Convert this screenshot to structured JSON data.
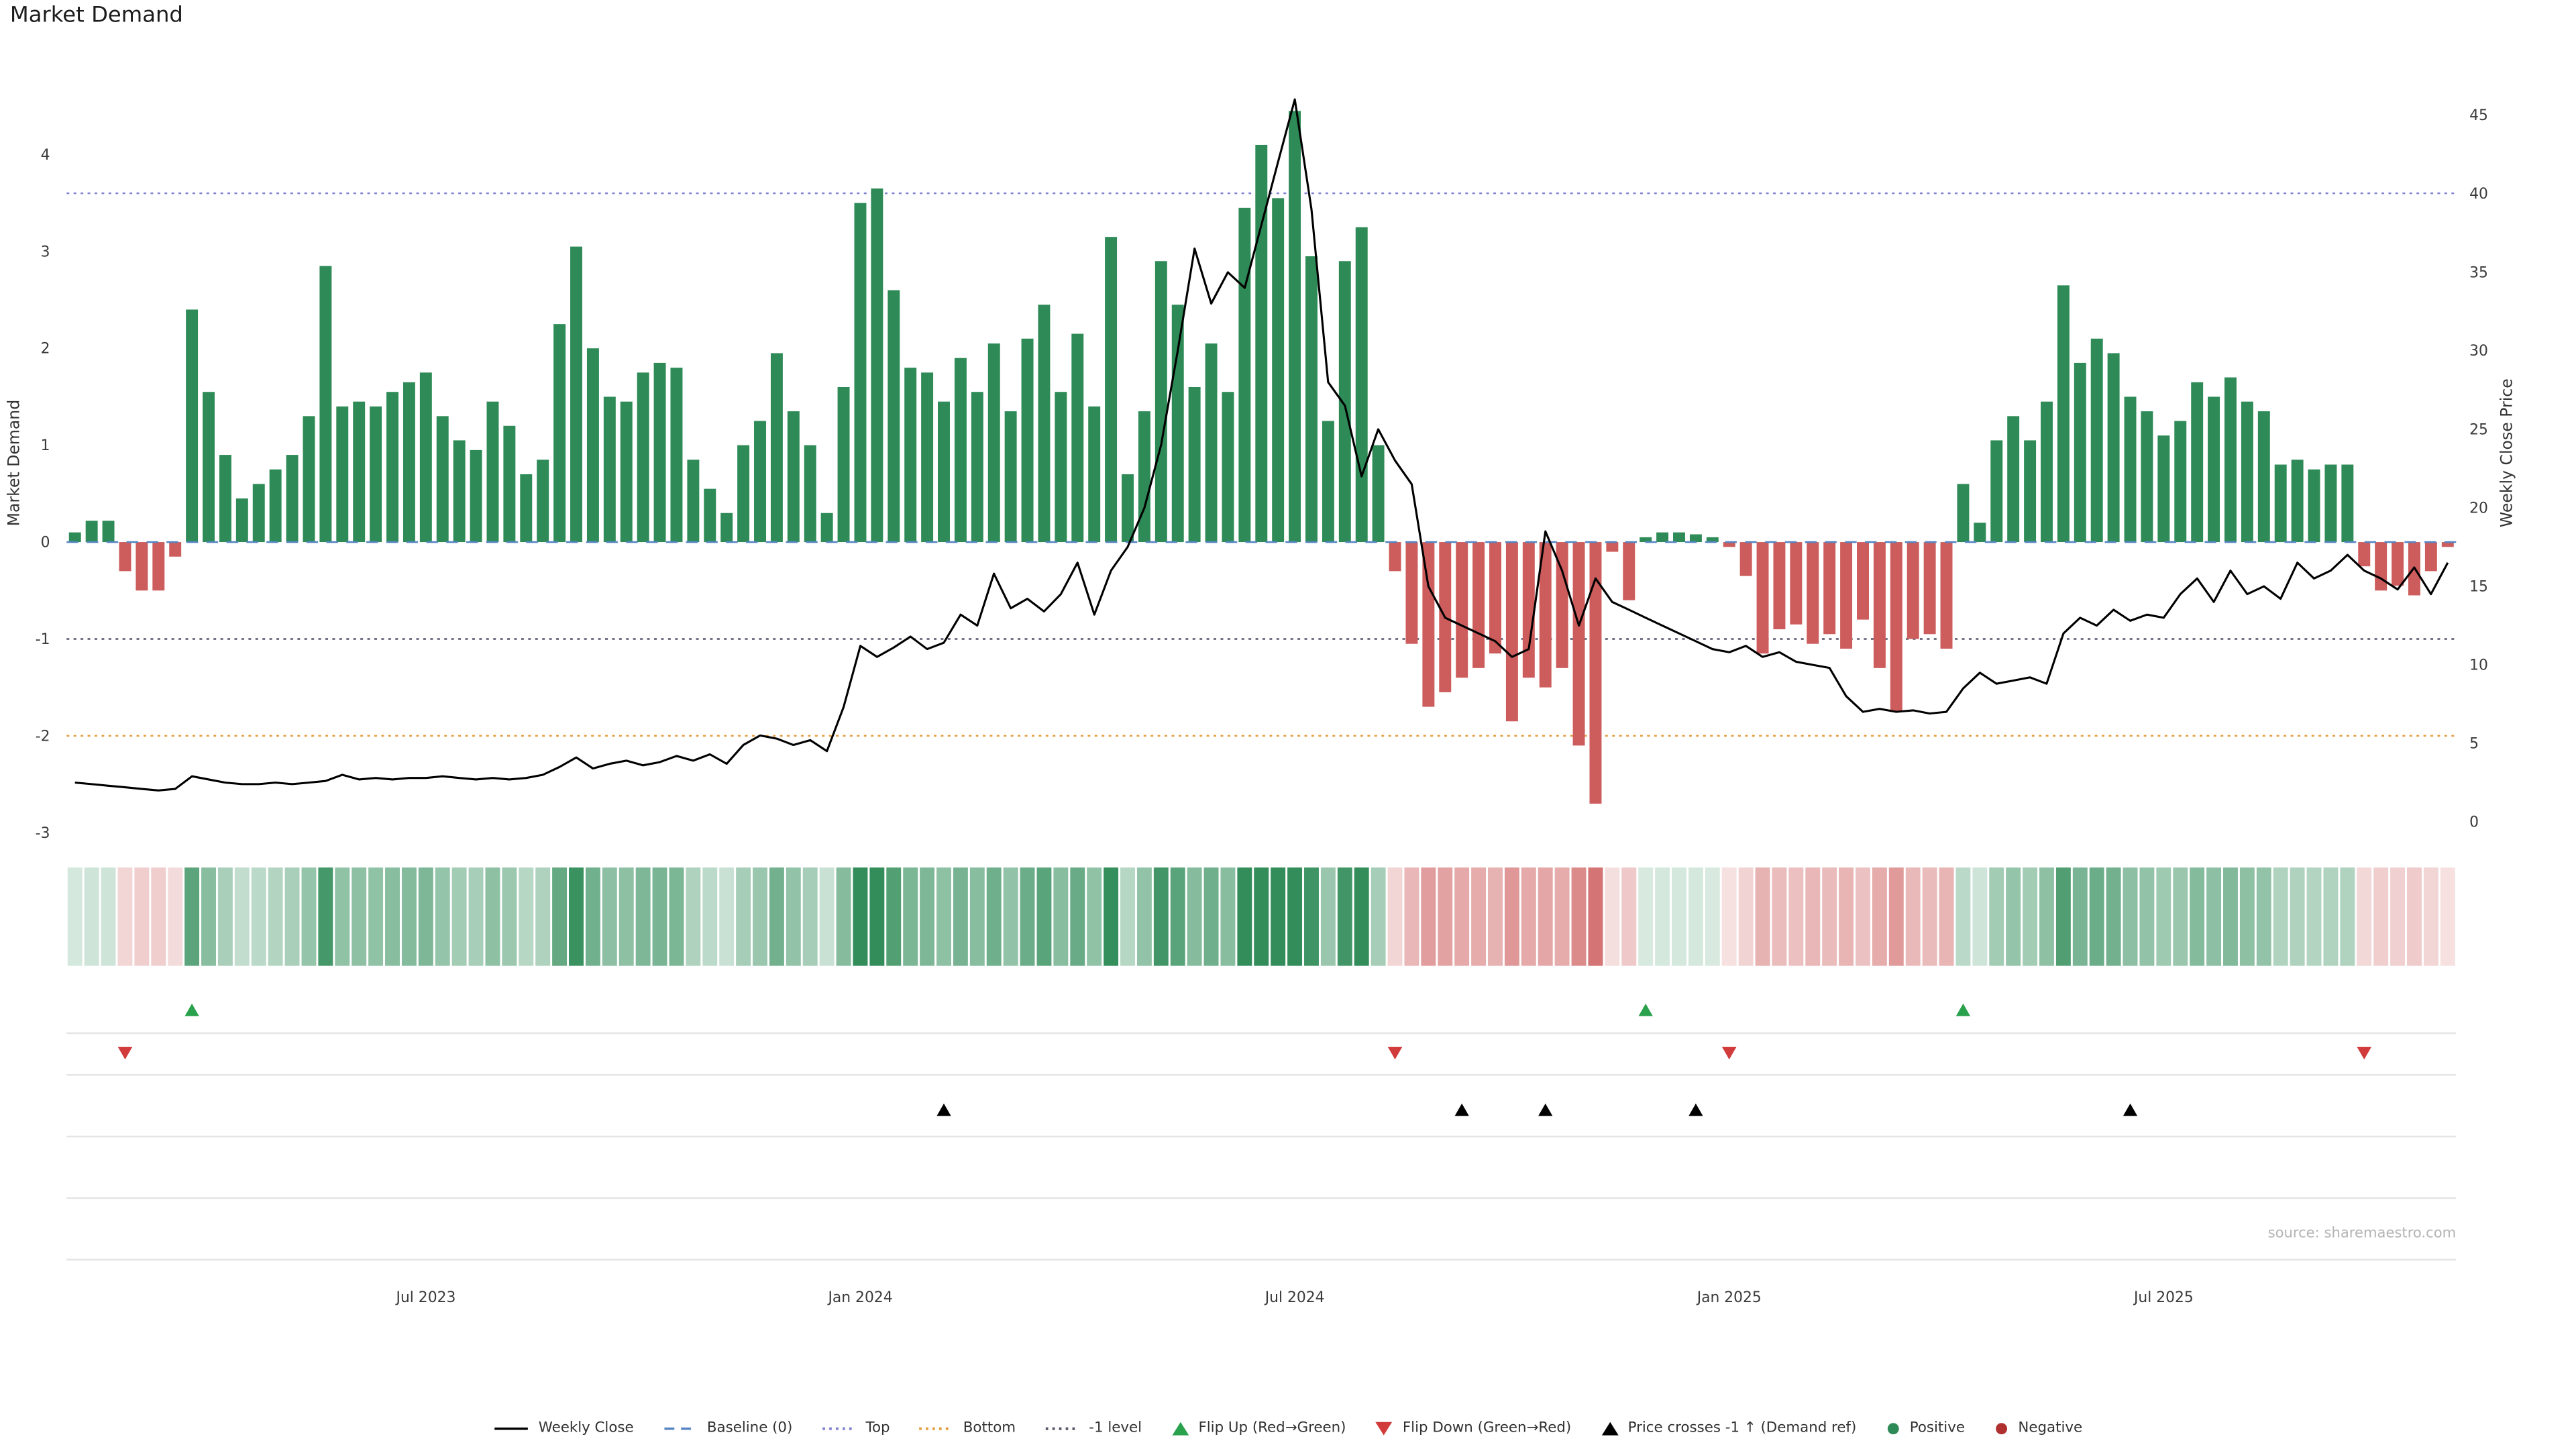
{
  "title": "Market Demand",
  "source": "source: sharemaestro.com",
  "colors": {
    "positive": "#2e8b57",
    "negative": "#cd5c5c",
    "price_line": "#000000",
    "baseline": "#5585c2",
    "top_line": "#8181d2",
    "bottom_line": "#e59b3c",
    "minus1_line": "#55556a",
    "flip_up": "#2aa14c",
    "flip_down": "#d23b3b",
    "price_cross": "#000000",
    "grid": "#e4e4e4",
    "tick_text": "#3a3a3a"
  },
  "chart_data": {
    "type": "combo",
    "subtype": [
      "bar",
      "line",
      "heatmap",
      "markers"
    ],
    "n_points": 143,
    "x_unit": "week_index",
    "x_tick_labels": [
      {
        "index": 21,
        "label": "Jul 2023"
      },
      {
        "index": 47,
        "label": "Jan 2024"
      },
      {
        "index": 73,
        "label": "Jul 2024"
      },
      {
        "index": 99,
        "label": "Jan 2025"
      },
      {
        "index": 125,
        "label": "Jul 2025"
      }
    ],
    "left_axis": {
      "label": "Market Demand",
      "ticks": [
        4,
        3,
        2,
        1,
        0,
        -1,
        -2,
        -3
      ],
      "range": [
        -3.05,
        4.65
      ]
    },
    "right_axis": {
      "label": "Weekly Close Price",
      "ticks": [
        45,
        40,
        35,
        30,
        25,
        20,
        15,
        10,
        5,
        0
      ],
      "range": [
        -1,
        46.5
      ]
    },
    "series": [
      {
        "name": "Market Demand",
        "type": "bar",
        "axis": "left",
        "values": [
          0.1,
          0.22,
          0.22,
          -0.3,
          -0.5,
          -0.5,
          -0.15,
          2.4,
          1.55,
          0.9,
          0.45,
          0.6,
          0.75,
          0.9,
          1.3,
          2.85,
          1.4,
          1.45,
          1.4,
          1.55,
          1.65,
          1.75,
          1.3,
          1.05,
          0.95,
          1.45,
          1.2,
          0.7,
          0.85,
          2.25,
          3.05,
          2.0,
          1.5,
          1.45,
          1.75,
          1.85,
          1.8,
          0.85,
          0.55,
          0.3,
          1.0,
          1.25,
          1.95,
          1.35,
          1.0,
          0.3,
          1.6,
          3.5,
          3.65,
          2.6,
          1.8,
          1.75,
          1.45,
          1.9,
          1.55,
          2.05,
          1.35,
          2.1,
          2.45,
          1.55,
          2.15,
          1.4,
          3.15,
          0.7,
          1.35,
          2.9,
          2.45,
          1.6,
          2.05,
          1.55,
          3.45,
          4.1,
          3.55,
          4.45,
          2.95,
          1.25,
          2.9,
          3.25,
          1.0,
          -0.3,
          -1.05,
          -1.7,
          -1.55,
          -1.4,
          -1.3,
          -1.15,
          -1.85,
          -1.4,
          -1.5,
          -1.3,
          -2.1,
          -2.7,
          -0.1,
          -0.6,
          0.05,
          0.1,
          0.1,
          0.08,
          0.05,
          -0.05,
          -0.35,
          -1.15,
          -0.9,
          -0.85,
          -1.05,
          -0.95,
          -1.1,
          -0.8,
          -1.3,
          -1.75,
          -1.0,
          -0.95,
          -1.1,
          0.6,
          0.2,
          1.05,
          1.3,
          1.05,
          1.45,
          2.65,
          1.85,
          2.1,
          1.95,
          1.5,
          1.35,
          1.1,
          1.25,
          1.65,
          1.5,
          1.7,
          1.45,
          1.35,
          0.8,
          0.85,
          0.75,
          0.8,
          0.8,
          -0.25,
          -0.5,
          -0.45,
          -0.55,
          -0.3,
          -0.05
        ]
      },
      {
        "name": "Weekly Close",
        "type": "line",
        "axis": "right",
        "values": [
          2.5,
          2.4,
          2.3,
          2.2,
          2.1,
          2.0,
          2.1,
          2.9,
          2.7,
          2.5,
          2.4,
          2.4,
          2.5,
          2.4,
          2.5,
          2.6,
          3.0,
          2.7,
          2.8,
          2.7,
          2.8,
          2.8,
          2.9,
          2.8,
          2.7,
          2.8,
          2.7,
          2.8,
          3.0,
          3.5,
          4.1,
          3.4,
          3.7,
          3.9,
          3.6,
          3.8,
          4.2,
          3.9,
          4.3,
          3.7,
          4.9,
          5.5,
          5.3,
          4.9,
          5.2,
          4.5,
          7.3,
          11.2,
          10.5,
          11.1,
          11.8,
          11.0,
          11.4,
          13.2,
          12.5,
          15.8,
          13.6,
          14.2,
          13.4,
          14.5,
          16.5,
          13.2,
          16.0,
          17.5,
          20.0,
          24.0,
          30.0,
          36.5,
          33.0,
          35.0,
          34.0,
          38.0,
          42.0,
          46.0,
          39.0,
          28.0,
          26.5,
          22.0,
          25.0,
          23.0,
          21.5,
          15.0,
          13.0,
          12.5,
          12.0,
          11.5,
          10.5,
          11.0,
          18.5,
          16.0,
          12.5,
          15.5,
          14.0,
          13.5,
          13.0,
          12.5,
          12.0,
          11.5,
          11.0,
          10.8,
          11.2,
          10.5,
          10.8,
          10.2,
          10.0,
          9.8,
          8.0,
          7.0,
          7.2,
          7.0,
          7.1,
          6.9,
          7.0,
          8.5,
          9.5,
          8.8,
          9.0,
          9.2,
          8.8,
          12.0,
          13.0,
          12.5,
          13.5,
          12.8,
          13.2,
          13.0,
          14.5,
          15.5,
          14.0,
          16.0,
          14.5,
          15.0,
          14.2,
          16.5,
          15.5,
          16.0,
          17.0,
          16.0,
          15.5,
          14.8,
          16.2,
          14.5,
          16.5
        ]
      }
    ],
    "ref_lines": [
      {
        "name": "Baseline (0)",
        "value": 0.0,
        "style": "dashed",
        "color_key": "baseline"
      },
      {
        "name": "Top",
        "value": 3.6,
        "style": "dotted",
        "color_key": "top_line"
      },
      {
        "name": "Bottom",
        "value": -2.0,
        "style": "dotted",
        "color_key": "bottom_line"
      },
      {
        "name": "-1 level",
        "value": -1.0,
        "style": "dotted",
        "color_key": "minus1_line"
      }
    ],
    "markers": {
      "flip_up_weeks": [
        7,
        94,
        113
      ],
      "flip_down_weeks": [
        3,
        79,
        99,
        137
      ],
      "price_cross_weeks": [
        52,
        83,
        88,
        97,
        123
      ]
    },
    "heatmap": {
      "source_series": "Market Demand",
      "note": "color intensity = |demand|, green positive, red negative"
    }
  },
  "legend": [
    {
      "label": "Weekly Close",
      "glyph": "line",
      "color": "#000000"
    },
    {
      "label": "Baseline (0)",
      "glyph": "dash",
      "color": "#5585c2"
    },
    {
      "label": "Top",
      "glyph": "dots",
      "color": "#8181d2"
    },
    {
      "label": "Bottom",
      "glyph": "dots",
      "color": "#e59b3c"
    },
    {
      "label": "-1 level",
      "glyph": "dots",
      "color": "#55556a"
    },
    {
      "label": "Flip Up (Red→Green)",
      "glyph": "tri-up",
      "color": "#2aa14c"
    },
    {
      "label": "Flip Down (Green→Red)",
      "glyph": "tri-down",
      "color": "#d23b3b"
    },
    {
      "label": "Price crosses -1 ↑ (Demand ref)",
      "glyph": "tri-up",
      "color": "#000000"
    },
    {
      "label": "Positive",
      "glyph": "dot",
      "color": "#2e8b57"
    },
    {
      "label": "Negative",
      "glyph": "dot",
      "color": "#b03030"
    }
  ]
}
